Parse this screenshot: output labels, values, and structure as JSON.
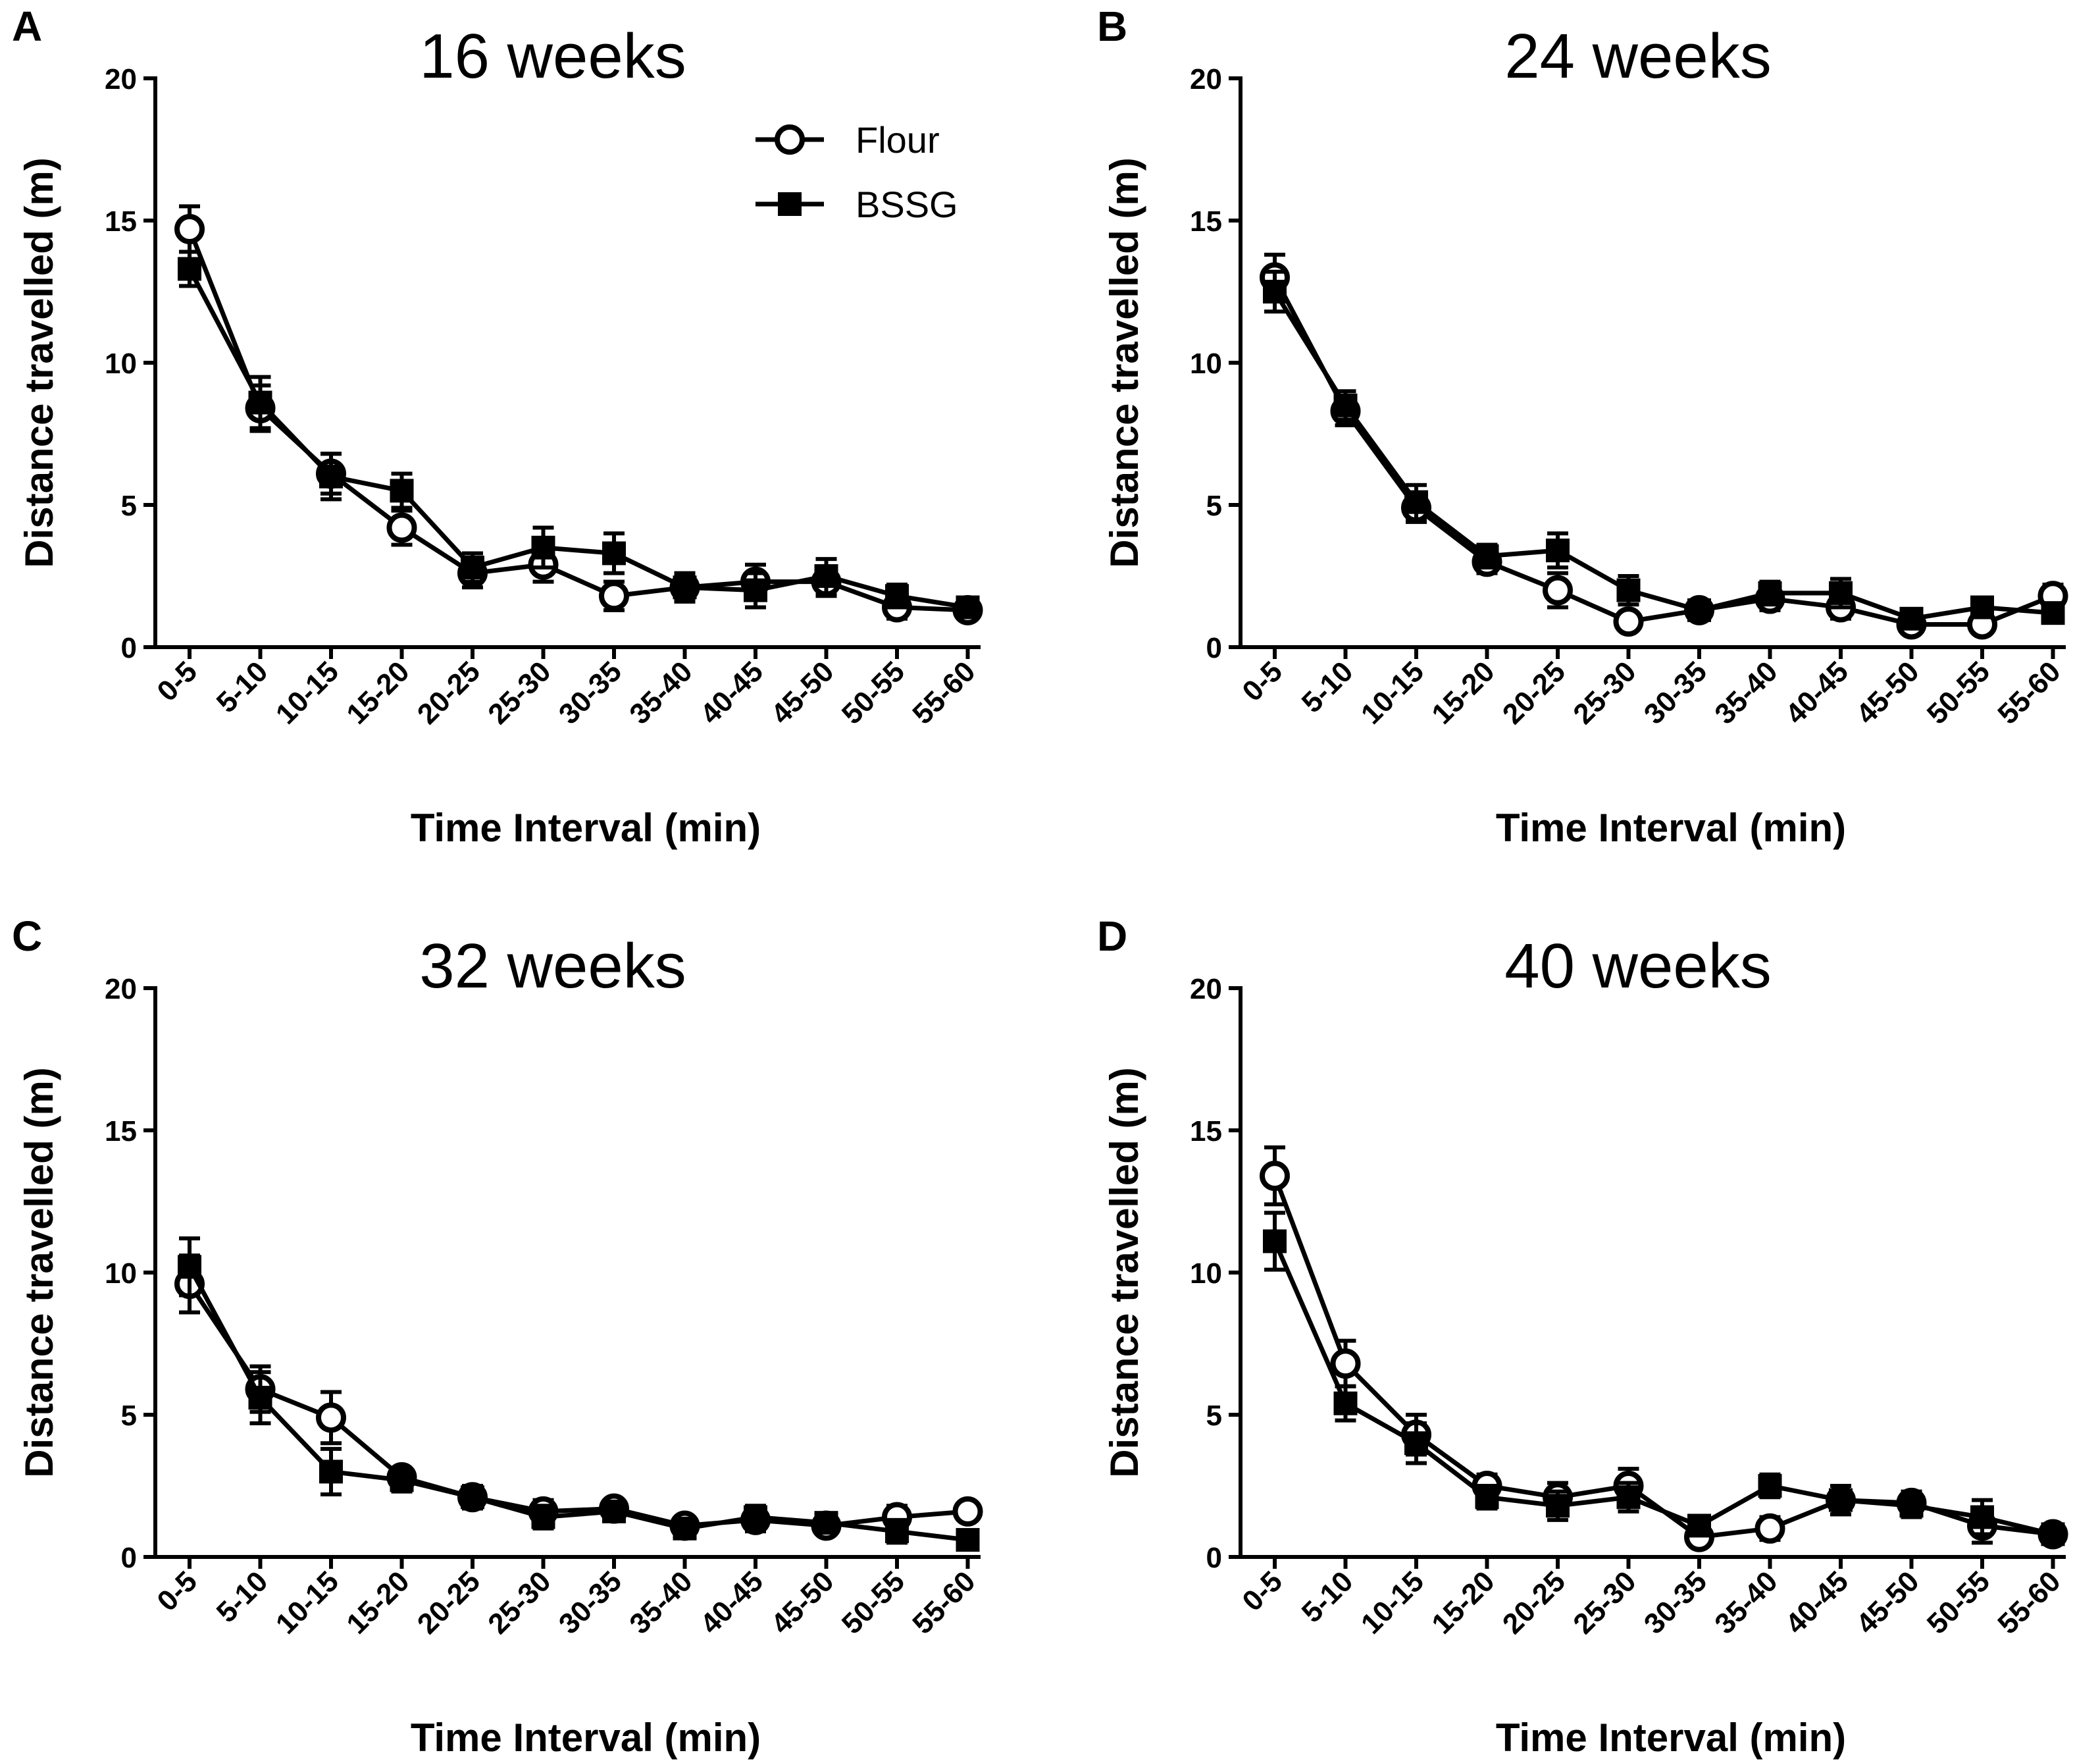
{
  "chart_data": [
    {
      "type": "line",
      "panel_label": "A",
      "title": "16 weeks",
      "xlabel": "Time Interval (min)",
      "ylabel": "Distance travelled (m)",
      "ylim": [
        0,
        20
      ],
      "yticks": [
        "0",
        "5",
        "10",
        "15",
        "20"
      ],
      "categories": [
        "0-5",
        "5-10",
        "10-15",
        "15-20",
        "20-25",
        "25-30",
        "30-35",
        "35-40",
        "40-45",
        "45-50",
        "50-55",
        "55-60"
      ],
      "series": [
        {
          "name": "Flour",
          "marker": "open-circle",
          "values": [
            14.7,
            8.4,
            6.1,
            4.2,
            2.6,
            2.9,
            1.8,
            2.1,
            2.3,
            2.3,
            1.4,
            1.3
          ],
          "errors": [
            0.8,
            0.8,
            0.7,
            0.6,
            0.5,
            0.6,
            0.5,
            0.4,
            0.6,
            0.5,
            0.4,
            0.3
          ]
        },
        {
          "name": "BSSG",
          "marker": "filled-square",
          "values": [
            13.3,
            8.6,
            6.0,
            5.5,
            2.8,
            3.5,
            3.3,
            2.1,
            2.0,
            2.5,
            1.8,
            1.4
          ],
          "errors": [
            0.6,
            0.9,
            0.8,
            0.6,
            0.5,
            0.7,
            0.7,
            0.5,
            0.6,
            0.6,
            0.4,
            0.3
          ]
        }
      ],
      "legend": {
        "position": "top-right",
        "entries": [
          "Flour",
          "BSSG"
        ]
      }
    },
    {
      "type": "line",
      "panel_label": "B",
      "title": "24 weeks",
      "xlabel": "Time Interval (min)",
      "ylabel": "Distance travelled (m)",
      "ylim": [
        0,
        20
      ],
      "yticks": [
        "0",
        "5",
        "10",
        "15",
        "20"
      ],
      "categories": [
        "0-5",
        "5-10",
        "10-15",
        "15-20",
        "20-25",
        "25-30",
        "30-35",
        "35-40",
        "40-45",
        "45-50",
        "50-55",
        "55-60"
      ],
      "series": [
        {
          "name": "Flour",
          "marker": "open-circle",
          "values": [
            13.0,
            8.3,
            4.9,
            3.0,
            2.0,
            0.9,
            1.3,
            1.7,
            1.4,
            0.8,
            0.8,
            1.8
          ],
          "errors": [
            0.8,
            0.5,
            0.5,
            0.4,
            0.6,
            0.3,
            0.3,
            0.4,
            0.4,
            0.2,
            0.2,
            0.4
          ]
        },
        {
          "name": "BSSG",
          "marker": "filled-square",
          "values": [
            12.5,
            8.5,
            5.1,
            3.2,
            3.4,
            2.0,
            1.3,
            1.9,
            1.9,
            1.0,
            1.4,
            1.2
          ],
          "errors": [
            0.7,
            0.5,
            0.6,
            0.4,
            0.6,
            0.5,
            0.3,
            0.4,
            0.5,
            0.3,
            0.3,
            0.3
          ]
        }
      ],
      "legend": null
    },
    {
      "type": "line",
      "panel_label": "C",
      "title": "32 weeks",
      "xlabel": "Time Interval (min)",
      "ylabel": "Distance travelled (m)",
      "ylim": [
        0,
        20
      ],
      "yticks": [
        "0",
        "5",
        "10",
        "15",
        "20"
      ],
      "categories": [
        "0-5",
        "5-10",
        "10-15",
        "15-20",
        "20-25",
        "25-30",
        "30-35",
        "35-40",
        "40-45",
        "45-50",
        "50-55",
        "55-60"
      ],
      "series": [
        {
          "name": "Flour",
          "marker": "open-circle",
          "values": [
            9.6,
            5.9,
            4.9,
            2.8,
            2.1,
            1.6,
            1.7,
            1.1,
            1.3,
            1.1,
            1.4,
            1.6
          ],
          "errors": [
            1.0,
            0.8,
            0.9,
            0.3,
            0.4,
            0.4,
            0.3,
            0.3,
            0.4,
            0.3,
            0.4,
            0.3
          ]
        },
        {
          "name": "BSSG",
          "marker": "filled-square",
          "values": [
            10.2,
            5.6,
            3.0,
            2.7,
            2.1,
            1.4,
            1.6,
            1.0,
            1.4,
            1.2,
            0.9,
            0.6
          ],
          "errors": [
            1.0,
            0.9,
            0.8,
            0.4,
            0.4,
            0.4,
            0.3,
            0.3,
            0.4,
            0.3,
            0.4,
            0.3
          ]
        }
      ],
      "legend": null
    },
    {
      "type": "line",
      "panel_label": "D",
      "title": "40 weeks",
      "xlabel": "Time Interval (min)",
      "ylabel": "Distance travelled (m)",
      "ylim": [
        0,
        20
      ],
      "yticks": [
        "0",
        "5",
        "10",
        "15",
        "20"
      ],
      "categories": [
        "0-5",
        "5-10",
        "10-15",
        "15-20",
        "20-25",
        "25-30",
        "30-35",
        "35-40",
        "40-45",
        "45-50",
        "50-55",
        "55-60"
      ],
      "series": [
        {
          "name": "Flour",
          "marker": "open-circle",
          "values": [
            13.4,
            6.8,
            4.3,
            2.5,
            2.1,
            2.5,
            0.7,
            1.0,
            2.0,
            1.9,
            1.1,
            0.8
          ],
          "errors": [
            1.0,
            0.8,
            0.7,
            0.4,
            0.5,
            0.6,
            0.3,
            0.4,
            0.5,
            0.4,
            0.6,
            0.3
          ]
        },
        {
          "name": "BSSG",
          "marker": "filled-square",
          "values": [
            11.1,
            5.4,
            4.0,
            2.1,
            1.8,
            2.1,
            1.1,
            2.5,
            2.0,
            1.8,
            1.4,
            0.8
          ],
          "errors": [
            1.0,
            0.6,
            0.7,
            0.4,
            0.5,
            0.5,
            0.3,
            0.4,
            0.5,
            0.4,
            0.6,
            0.3
          ]
        }
      ],
      "legend": null
    }
  ]
}
